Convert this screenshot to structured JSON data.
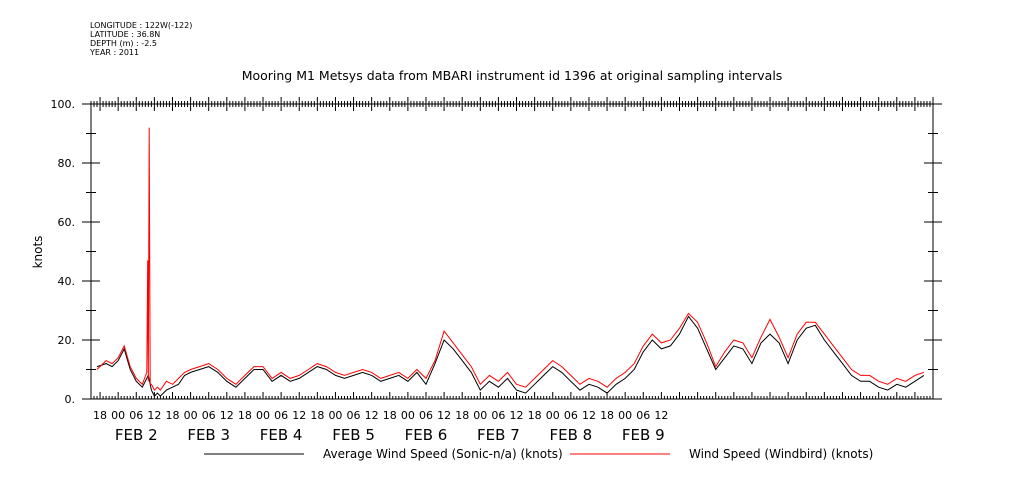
{
  "meta": {
    "longitude": "LONGITUDE : 122W(-122)",
    "latitude": "LATITUDE : 36.8N",
    "depth": "DEPTH (m) : -2.5",
    "year": "YEAR : 2011"
  },
  "chart_data": {
    "type": "line",
    "title": "Mooring M1 Metsys data from MBARI instrument id 1396 at original sampling intervals",
    "ylabel": "knots",
    "xlabel": "",
    "ylim": [
      0,
      100
    ],
    "xlim_hours": [
      -9,
      270
    ],
    "y_ticks": [
      "0.",
      "20.",
      "40.",
      "60.",
      "80.",
      "100."
    ],
    "x_hour_ticks": [
      "18",
      "00",
      "06",
      "12",
      "18",
      "00",
      "06",
      "12",
      "18",
      "00",
      "06",
      "12",
      "18",
      "00",
      "06",
      "12",
      "18",
      "00",
      "06",
      "12",
      "18",
      "00",
      "06",
      "12",
      "18",
      "00",
      "06",
      "12",
      "18",
      "00",
      "06",
      "12"
    ],
    "x_day_labels": [
      "FEB  2",
      "FEB  3",
      "FEB  4",
      "FEB  5",
      "FEB  6",
      "FEB  7",
      "FEB  8",
      "FEB  9"
    ],
    "grid": false,
    "legend_position": "bottom",
    "series": [
      {
        "name": "Average Wind Speed (Sonic-n/a) (knots)",
        "color": "#000000",
        "x": [
          -7,
          -4,
          -2,
          0,
          2,
          4,
          6,
          8,
          10,
          11,
          12,
          13,
          14,
          16,
          18,
          20,
          22,
          24,
          27,
          30,
          33,
          36,
          39,
          42,
          45,
          48,
          51,
          54,
          57,
          60,
          63,
          66,
          69,
          72,
          75,
          78,
          81,
          84,
          87,
          90,
          93,
          96,
          99,
          102,
          105,
          108,
          111,
          114,
          117,
          120,
          123,
          126,
          129,
          132,
          135,
          138,
          141,
          144,
          147,
          150,
          153,
          156,
          159,
          162,
          165,
          168,
          171,
          174,
          177,
          180,
          183,
          186,
          189,
          192,
          195,
          198,
          201,
          204,
          207,
          210,
          213,
          216,
          219,
          222,
          225,
          228,
          231,
          234,
          237,
          240,
          243,
          246,
          249,
          252,
          255,
          258,
          261,
          264,
          267
        ],
        "y": [
          11,
          12,
          11,
          13,
          17,
          10,
          6,
          4,
          8,
          3,
          1,
          2,
          1,
          3,
          4,
          5,
          8,
          9,
          10,
          11,
          9,
          6,
          4,
          7,
          10,
          10,
          6,
          8,
          6,
          7,
          9,
          11,
          10,
          8,
          7,
          8,
          9,
          8,
          6,
          7,
          8,
          6,
          9,
          5,
          12,
          20,
          17,
          13,
          9,
          3,
          6,
          4,
          7,
          3,
          2,
          5,
          8,
          11,
          9,
          6,
          3,
          5,
          4,
          2,
          5,
          7,
          10,
          16,
          20,
          17,
          18,
          22,
          28,
          24,
          17,
          10,
          14,
          18,
          17,
          12,
          19,
          22,
          19,
          12,
          20,
          24,
          25,
          20,
          16,
          12,
          8,
          6,
          6,
          4,
          3,
          5,
          4,
          6,
          8
        ]
      },
      {
        "name": "Wind Speed (Windbird) (knots)",
        "color": "#ff0000",
        "x": [
          -7,
          -4,
          -2,
          0,
          2,
          4,
          6,
          8,
          9.5,
          9.8,
          10,
          10.3,
          10.6,
          11,
          12,
          13,
          14,
          16,
          18,
          20,
          22,
          24,
          27,
          30,
          33,
          36,
          39,
          42,
          45,
          48,
          51,
          54,
          57,
          60,
          63,
          66,
          69,
          72,
          75,
          78,
          81,
          84,
          87,
          90,
          93,
          96,
          99,
          102,
          105,
          108,
          111,
          114,
          117,
          120,
          123,
          126,
          129,
          132,
          135,
          138,
          141,
          144,
          147,
          150,
          153,
          156,
          159,
          162,
          165,
          168,
          171,
          174,
          177,
          180,
          183,
          186,
          189,
          192,
          195,
          198,
          201,
          204,
          207,
          210,
          213,
          216,
          219,
          222,
          225,
          228,
          231,
          234,
          237,
          240,
          243,
          246,
          249,
          252,
          255,
          258,
          261,
          264,
          267
        ],
        "y": [
          10,
          13,
          12,
          14,
          18,
          11,
          7,
          5,
          9,
          47,
          6,
          92,
          5,
          5,
          3,
          4,
          3,
          6,
          5,
          7,
          9,
          10,
          11,
          12,
          10,
          7,
          5,
          8,
          11,
          11,
          7,
          9,
          7,
          8,
          10,
          12,
          11,
          9,
          8,
          9,
          10,
          9,
          7,
          8,
          9,
          7,
          10,
          7,
          13,
          23,
          19,
          15,
          11,
          5,
          8,
          6,
          9,
          5,
          4,
          7,
          10,
          13,
          11,
          8,
          5,
          7,
          6,
          4,
          7,
          9,
          12,
          18,
          22,
          19,
          20,
          24,
          29,
          26,
          19,
          11,
          16,
          20,
          19,
          14,
          21,
          27,
          21,
          14,
          22,
          26,
          26,
          22,
          18,
          14,
          10,
          8,
          8,
          6,
          5,
          7,
          6,
          8,
          9
        ]
      }
    ]
  }
}
